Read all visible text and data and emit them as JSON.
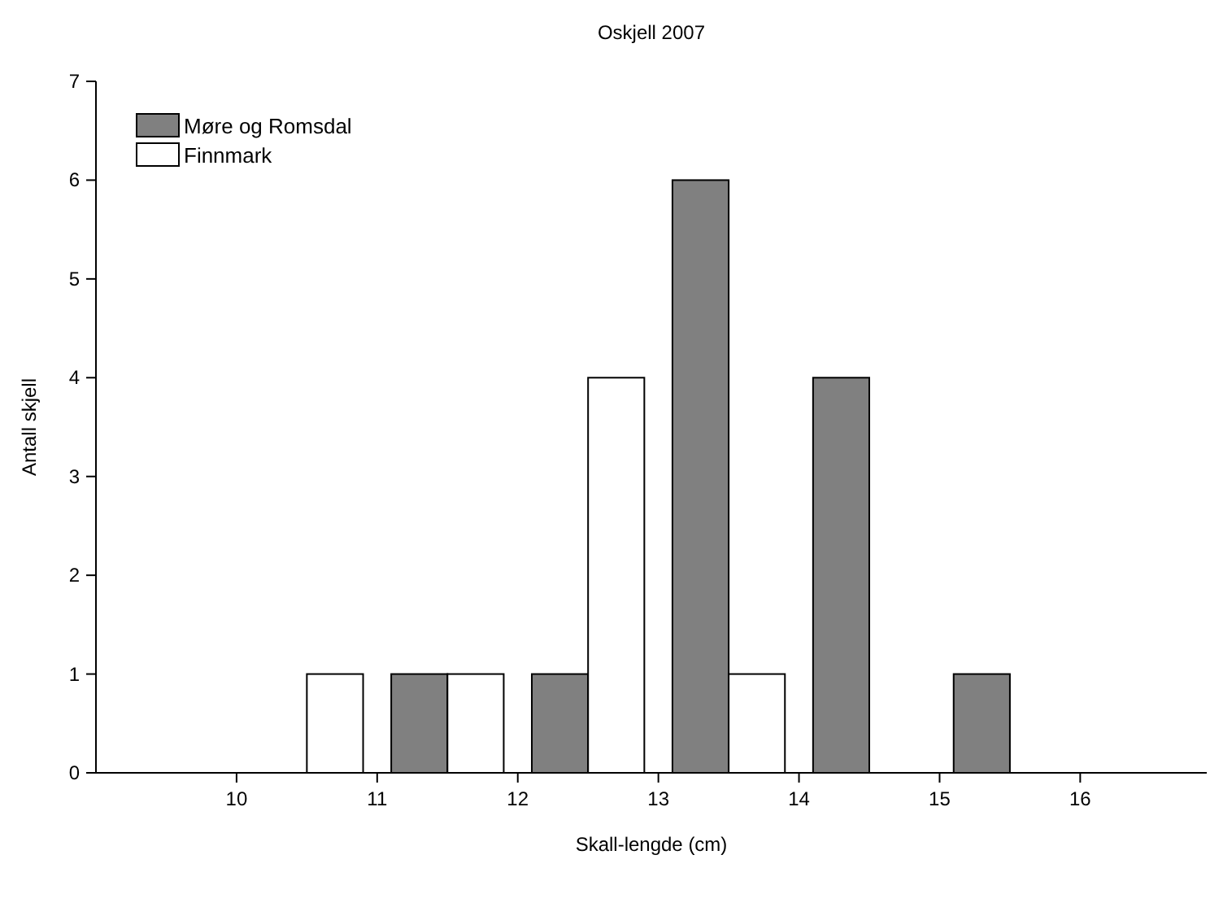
{
  "chart_data": {
    "type": "bar",
    "title": "Oskjell 2007",
    "xlabel": "Skall-lengde (cm)",
    "ylabel": "Antall skjell",
    "series": [
      {
        "name": "Møre og Romsdal",
        "color": "#808080",
        "x": [
          11.3,
          12.3,
          13.3,
          14.3,
          15.3
        ],
        "values": [
          1,
          1,
          6,
          4,
          1
        ]
      },
      {
        "name": "Finnmark",
        "color": "#ffffff",
        "x": [
          10.7,
          11.7,
          12.7,
          13.7
        ],
        "values": [
          1,
          1,
          4,
          1
        ]
      }
    ],
    "xlim": [
      9,
      16.9
    ],
    "xticks": [
      10,
      11,
      12,
      13,
      14,
      15,
      16
    ],
    "ylim": [
      0,
      7
    ],
    "yticks": [
      0,
      1,
      2,
      3,
      4,
      5,
      6,
      7
    ],
    "grid": false,
    "legend": "top left"
  }
}
